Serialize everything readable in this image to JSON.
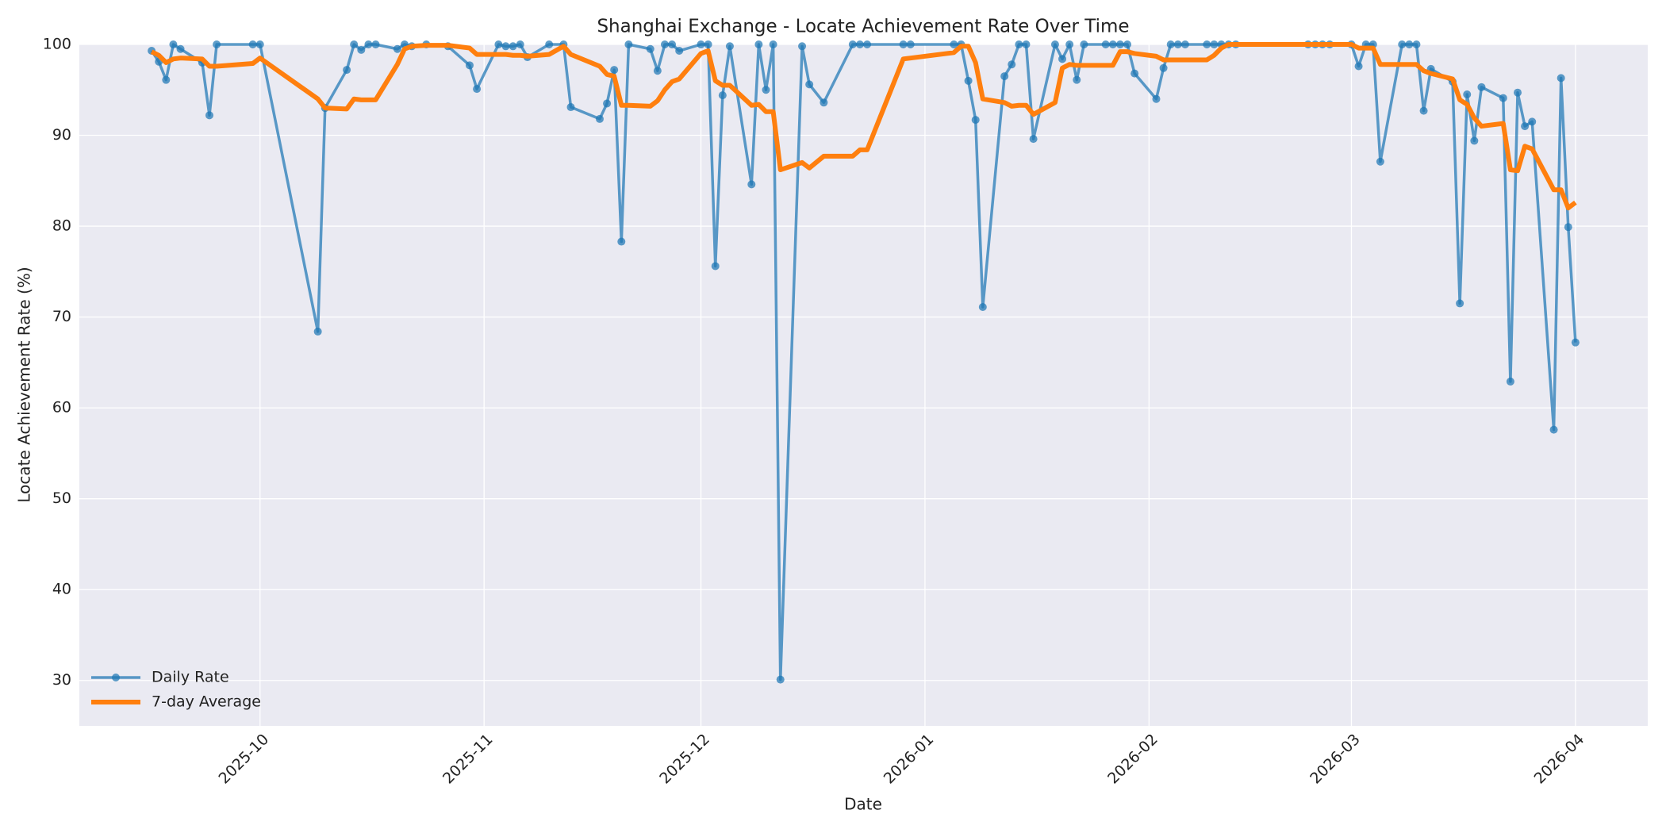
{
  "chart_data": {
    "type": "line",
    "title": "Shanghai Exchange - Locate Achievement Rate Over Time",
    "x_label": "Date",
    "y_label": "Locate Achievement Rate (%)",
    "xlim": [
      -25,
      192
    ],
    "xticks": [
      {
        "value": 0,
        "label": "2025-10"
      },
      {
        "value": 31,
        "label": "2025-11"
      },
      {
        "value": 61,
        "label": "2025-12"
      },
      {
        "value": 92,
        "label": "2026-01"
      },
      {
        "value": 123,
        "label": "2026-02"
      },
      {
        "value": 151,
        "label": "2026-03"
      },
      {
        "value": 182,
        "label": "2026-04"
      }
    ],
    "ylim": [
      25,
      100
    ],
    "yticks": [
      30,
      40,
      50,
      60,
      70,
      80,
      90,
      100
    ],
    "grid": true,
    "legend": "lower left",
    "x": [
      -15,
      -14,
      -13,
      -12,
      -11,
      -8,
      -7,
      -6,
      -1,
      0,
      8,
      9,
      12,
      13,
      14,
      15,
      16,
      19,
      20,
      21,
      23,
      26,
      29,
      30,
      33,
      34,
      35,
      36,
      37,
      40,
      42,
      43,
      47,
      48,
      49,
      50,
      51,
      54,
      55,
      56,
      57,
      58,
      61,
      62,
      63,
      64,
      65,
      68,
      69,
      70,
      71,
      72,
      75,
      76,
      78,
      82,
      83,
      84,
      89,
      90,
      96,
      97,
      98,
      99,
      100,
      103,
      104,
      105,
      106,
      107,
      110,
      111,
      112,
      113,
      114,
      117,
      118,
      119,
      120,
      121,
      124,
      125,
      126,
      127,
      128,
      131,
      132,
      133,
      134,
      135,
      145,
      146,
      147,
      148,
      151,
      152,
      153,
      154,
      155,
      158,
      159,
      160,
      161,
      162,
      165,
      166,
      167,
      168,
      169,
      172,
      173,
      174,
      175,
      176,
      179,
      180,
      181,
      182
    ],
    "series": [
      {
        "name": "Daily Rate",
        "color": "#1f77b4",
        "marker": true,
        "values": [
          99.3,
          98.1,
          96.1,
          100,
          99.5,
          98.0,
          92.2,
          100,
          100,
          100,
          68.4,
          93.0,
          97.2,
          100,
          99.4,
          100,
          100,
          99.5,
          100,
          99.8,
          100,
          99.8,
          97.7,
          95.1,
          100,
          99.8,
          99.8,
          100,
          98.6,
          100,
          100,
          93.1,
          91.8,
          93.5,
          97.2,
          78.3,
          100,
          99.5,
          97.1,
          100,
          100,
          99.3,
          100,
          100,
          75.6,
          94.4,
          99.8,
          84.6,
          100,
          95.0,
          100,
          30.1,
          99.8,
          95.6,
          93.6,
          100,
          100,
          100,
          100,
          100,
          100,
          100,
          96.0,
          91.7,
          71.1,
          96.5,
          97.8,
          100,
          100,
          89.6,
          100,
          98.4,
          100,
          96.1,
          100,
          100,
          100,
          100,
          100,
          96.8,
          94.0,
          97.4,
          100,
          100,
          100,
          100,
          100,
          100,
          100,
          100,
          100,
          100,
          100,
          100,
          100,
          97.6,
          100,
          100,
          87.1,
          100,
          100,
          100,
          92.7,
          97.3,
          95.9,
          71.5,
          94.5,
          89.4,
          95.3,
          94.1,
          62.9,
          94.7,
          91.0,
          91.5,
          57.6,
          96.3,
          79.9,
          67.2
        ]
      },
      {
        "name": "7-day Average",
        "color": "#ff7f0e",
        "marker": false,
        "values": [
          99.2,
          98.8,
          98.0,
          98.4,
          98.5,
          98.4,
          97.6,
          97.6,
          97.9,
          98.5,
          94.0,
          93.0,
          92.9,
          94.0,
          93.9,
          93.9,
          93.9,
          97.8,
          99.5,
          99.8,
          99.9,
          99.9,
          99.6,
          98.9,
          98.9,
          98.9,
          98.8,
          98.8,
          98.7,
          98.9,
          99.8,
          98.9,
          97.6,
          96.7,
          96.5,
          93.3,
          93.3,
          93.2,
          93.8,
          95.0,
          95.9,
          96.2,
          99.0,
          99.3,
          96.0,
          95.5,
          95.5,
          93.3,
          93.4,
          92.6,
          92.6,
          86.2,
          87.0,
          86.4,
          87.7,
          87.7,
          88.4,
          88.4,
          98.4,
          98.5,
          99.1,
          99.8,
          99.8,
          98.0,
          94.0,
          93.6,
          93.2,
          93.3,
          93.3,
          92.3,
          93.6,
          97.4,
          97.8,
          97.7,
          97.7,
          97.7,
          97.7,
          99.2,
          99.2,
          99.0,
          98.7,
          98.3,
          98.3,
          98.3,
          98.3,
          98.3,
          98.8,
          99.6,
          100,
          100,
          100,
          100,
          100,
          100,
          100,
          99.6,
          99.6,
          99.6,
          97.8,
          97.8,
          97.8,
          97.8,
          97.1,
          96.8,
          96.2,
          93.9,
          93.4,
          91.9,
          91.0,
          91.3,
          86.2,
          86.1,
          88.8,
          88.5,
          84.0,
          84.0,
          82.0,
          82.6
        ]
      }
    ]
  }
}
